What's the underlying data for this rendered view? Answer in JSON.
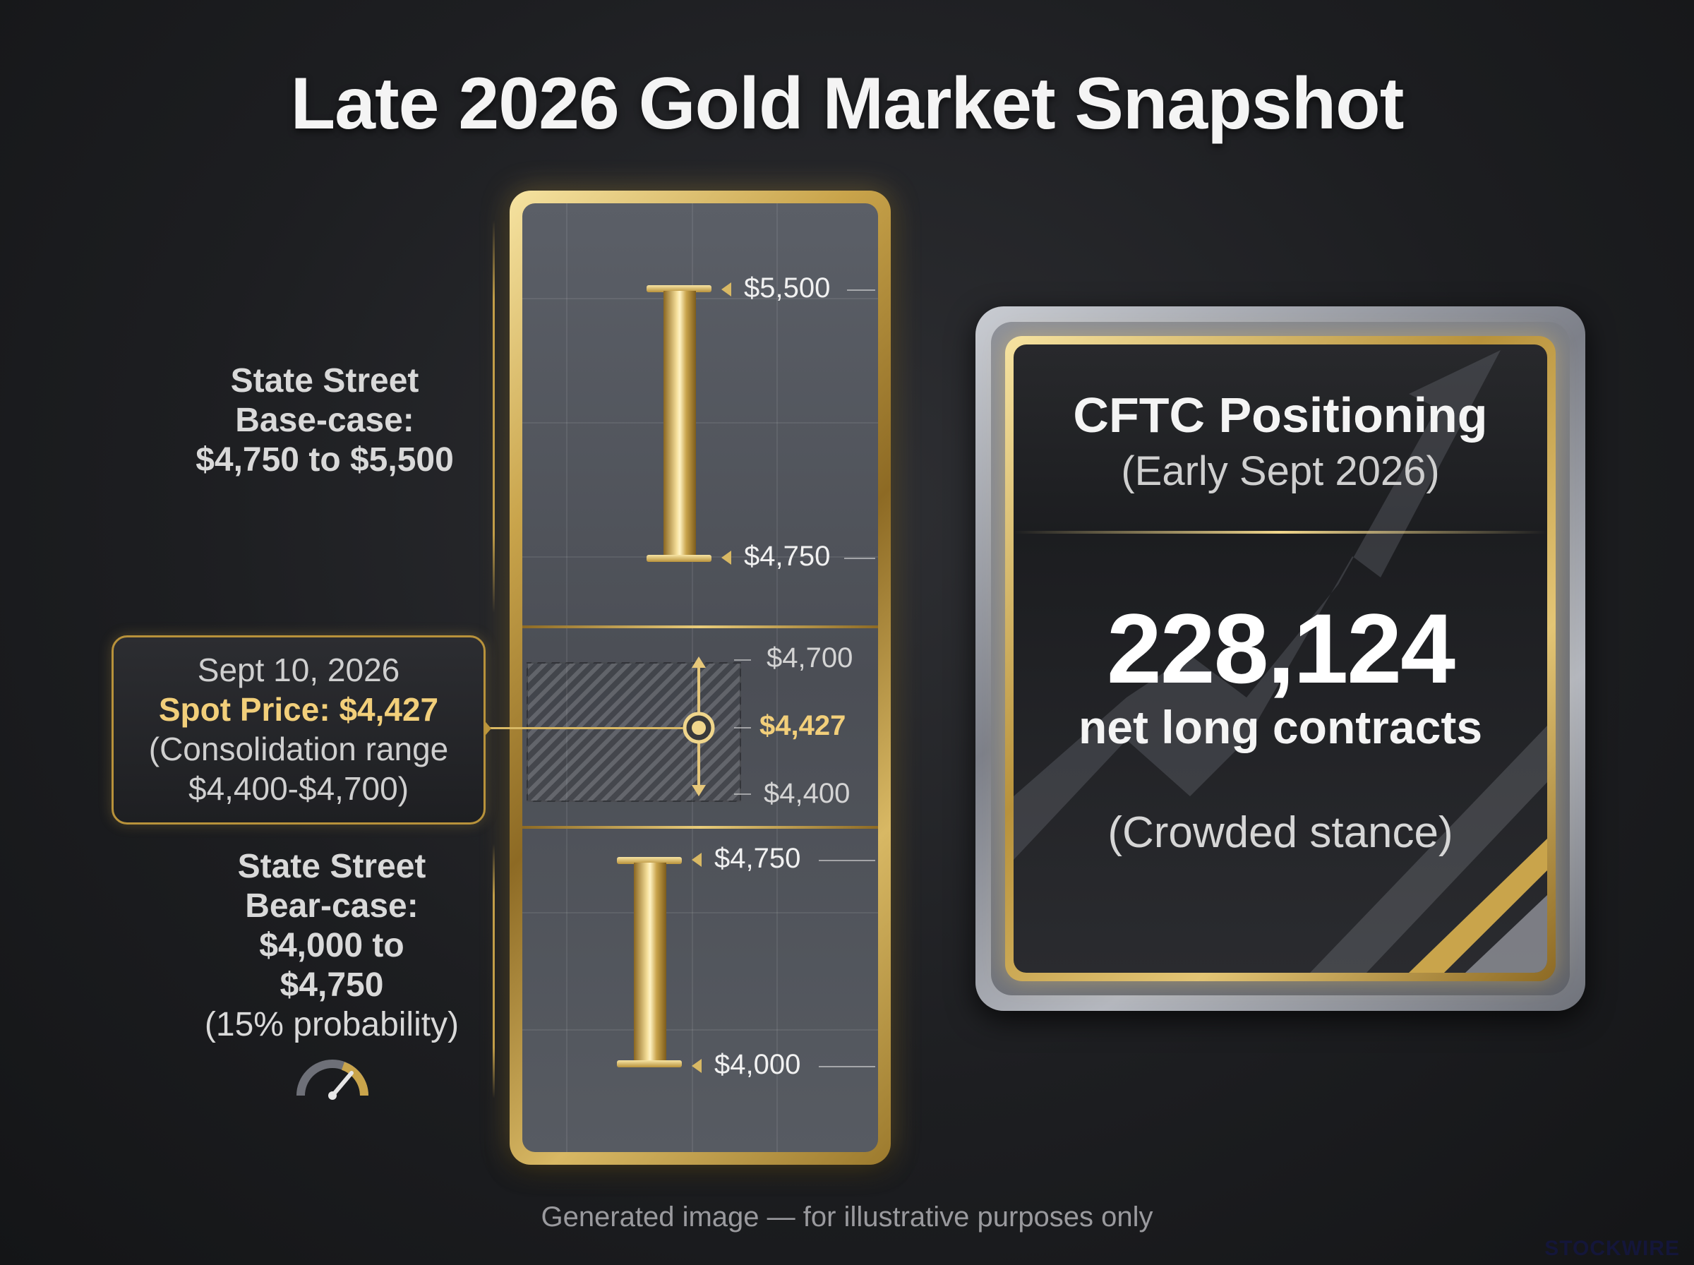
{
  "title": "Late 2026 Gold Market Snapshot",
  "base_case": {
    "line1": "State Street",
    "line2": "Base-case:",
    "line3": "$4,750 to $5,500",
    "high_label": "$5,500",
    "low_label": "$4,750"
  },
  "spot": {
    "date": "Sept 10, 2026",
    "price_text": "Spot Price: $4,427",
    "range_line1": "(Consolidation range",
    "range_line2": "$4,400-$4,700)",
    "upper_label": "$4,700",
    "spot_label": "$4,427",
    "lower_label": "$4,400"
  },
  "bear_case": {
    "line1": "State Street",
    "line2": "Bear-case:",
    "line3": "$4,000 to",
    "line4": "$4,750",
    "probability": "(15% probability)",
    "high_label": "$4,750",
    "low_label": "$4,000",
    "icon": "gauge-icon"
  },
  "cftc": {
    "title": "CFTC Positioning",
    "subtitle": "(Early Sept 2026)",
    "value": "228,124",
    "unit": "net long contracts",
    "note": "(Crowded stance)",
    "icon": "trend-arrow-icon"
  },
  "footer": "Generated image — for illustrative purposes only",
  "brand": "STOCKWIRE",
  "colors": {
    "gold": "#c9a44b",
    "gold_text": "#f2cf7a",
    "background": "#1d1e21"
  }
}
